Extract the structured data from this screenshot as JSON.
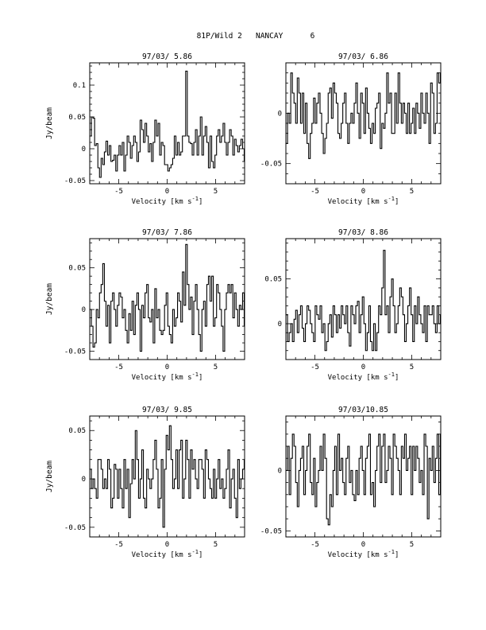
{
  "figure_title": "81P/Wild 2   NANCAY      6",
  "chart_data": [
    {
      "type": "line",
      "title": "97/03/ 5.86",
      "xlabel": "Velocity [km s-1]",
      "ylabel": "Jy/beam",
      "xlim": [
        -8,
        8
      ],
      "ylim": [
        -0.055,
        0.135
      ],
      "xticks": [
        -5,
        0,
        5
      ],
      "yticks": [
        0.1,
        0.05,
        0,
        -0.05
      ],
      "ytick_labels": [
        "0.1",
        "0.05",
        "0",
        "-0.05"
      ],
      "series": [
        {
          "x_start": -8.0,
          "x_step": 0.168,
          "values": [
            0.02,
            0.05,
            0.048,
            0.005,
            0.008,
            -0.03,
            -0.045,
            -0.015,
            -0.025,
            -0.005,
            0.012,
            -0.01,
            0.005,
            -0.02,
            -0.018,
            -0.01,
            -0.035,
            -0.01,
            0.005,
            -0.01,
            0.01,
            -0.035,
            -0.01,
            0.02,
            0.01,
            -0.015,
            0.005,
            0.02,
            0.01,
            -0.02,
            -0.005,
            0.045,
            0.03,
            0.01,
            0.04,
            0.02,
            -0.005,
            0.008,
            -0.02,
            0.01,
            0.045,
            0.02,
            0.04,
            -0.01,
            0.01,
            0.005,
            -0.025,
            -0.025,
            -0.035,
            -0.03,
            -0.025,
            -0.015,
            0.02,
            -0.01,
            0.01,
            -0.01,
            -0.005,
            0.02,
            0.02,
            0.122,
            0.02,
            0.01,
            0.008,
            -0.01,
            0.01,
            0.03,
            -0.01,
            0.02,
            0.05,
            -0.01,
            0.02,
            0.035,
            0.01,
            -0.03,
            0.02,
            -0.02,
            -0.03,
            -0.01,
            0.02,
            0.03,
            0.01,
            0.02,
            0.04,
            0.01,
            -0.01,
            0.01,
            0.03,
            0.02,
            -0.01,
            0.015,
            0.005,
            -0.005,
            0.005,
            0.015,
            0.0,
            -0.02
          ]
        }
      ]
    },
    {
      "type": "line",
      "title": "97/03/ 6.86",
      "xlabel": "Velocity [km s-1]",
      "ylabel": "",
      "xlim": [
        -8,
        8
      ],
      "ylim": [
        -0.07,
        0.05
      ],
      "xticks": [
        -5,
        0,
        5
      ],
      "yticks": [
        0,
        -0.05
      ],
      "ytick_labels": [
        "0",
        "-0.05"
      ],
      "series": [
        {
          "x_start": -8.0,
          "x_step": 0.168,
          "values": [
            -0.03,
            0.0,
            -0.01,
            0.04,
            0.02,
            0.01,
            -0.01,
            0.035,
            0.02,
            -0.01,
            0.02,
            -0.02,
            0.01,
            -0.03,
            -0.045,
            -0.02,
            -0.01,
            0.015,
            -0.01,
            0.01,
            0.02,
            0.0,
            -0.02,
            -0.04,
            -0.025,
            -0.01,
            0.02,
            0.025,
            -0.005,
            0.03,
            0.02,
            0.01,
            -0.02,
            -0.025,
            -0.01,
            0.01,
            0.02,
            -0.01,
            -0.03,
            -0.01,
            0.0,
            -0.01,
            0.01,
            0.03,
            0.0,
            -0.025,
            0.02,
            0.01,
            -0.02,
            0.025,
            0.0,
            -0.015,
            -0.03,
            -0.01,
            -0.02,
            0.005,
            0.01,
            0.02,
            -0.035,
            -0.01,
            -0.015,
            0.0,
            0.04,
            0.01,
            0.02,
            -0.02,
            -0.02,
            0.02,
            -0.01,
            0.04,
            0.01,
            -0.01,
            0.01,
            0.0,
            -0.02,
            0.01,
            -0.02,
            -0.01,
            0.005,
            -0.02,
            0.01,
            0.0,
            -0.015,
            0.02,
            0.0,
            -0.01,
            0.02,
            0.0,
            -0.03,
            0.03,
            0.02,
            -0.02,
            -0.01,
            0.04,
            0.03,
            0.04
          ]
        }
      ]
    },
    {
      "type": "line",
      "title": "97/03/ 7.86",
      "xlabel": "Velocity [km s-1]",
      "ylabel": "Jy/beam",
      "xlim": [
        -8,
        8
      ],
      "ylim": [
        -0.06,
        0.085
      ],
      "xticks": [
        -5,
        0,
        5
      ],
      "yticks": [
        0.05,
        0,
        -0.05
      ],
      "ytick_labels": [
        "0.05",
        "0",
        "-0.05"
      ],
      "series": [
        {
          "x_start": -8.0,
          "x_step": 0.168,
          "values": [
            0.0,
            -0.02,
            -0.045,
            -0.04,
            0.0,
            -0.01,
            0.02,
            0.03,
            0.055,
            0.01,
            -0.02,
            0.005,
            -0.04,
            0.01,
            0.02,
            0.0,
            -0.02,
            0.005,
            0.02,
            0.015,
            -0.01,
            0.0,
            -0.025,
            -0.04,
            -0.005,
            -0.025,
            0.01,
            -0.03,
            0.005,
            0.02,
            0.0,
            -0.05,
            0.005,
            -0.01,
            0.02,
            0.03,
            -0.01,
            -0.015,
            0.0,
            -0.04,
            0.025,
            -0.01,
            0.0,
            -0.025,
            -0.03,
            -0.025,
            0.005,
            0.02,
            -0.02,
            -0.03,
            -0.04,
            0.0,
            -0.02,
            -0.01,
            0.02,
            0.01,
            -0.015,
            0.045,
            0.005,
            0.078,
            0.03,
            0.0,
            0.015,
            -0.03,
            0.01,
            0.03,
            0.0,
            -0.03,
            -0.05,
            0.0,
            0.01,
            -0.02,
            0.03,
            0.04,
            0.01,
            0.04,
            -0.02,
            -0.01,
            0.03,
            0.02,
            0.0,
            -0.02,
            -0.05,
            0.0,
            0.02,
            0.03,
            0.02,
            0.03,
            -0.01,
            0.02,
            0.0,
            -0.02,
            0.005,
            0.0,
            0.02,
            -0.02
          ]
        }
      ]
    },
    {
      "type": "line",
      "title": "97/03/ 8.86",
      "xlabel": "Velocity [km s-1]",
      "ylabel": "",
      "xlim": [
        -8,
        8
      ],
      "ylim": [
        -0.04,
        0.095
      ],
      "xticks": [
        -5,
        0,
        5
      ],
      "yticks": [
        0.05,
        0
      ],
      "ytick_labels": [
        "0.05",
        "0"
      ],
      "series": [
        {
          "x_start": -8.0,
          "x_step": 0.168,
          "values": [
            0.01,
            -0.02,
            -0.01,
            0.0,
            -0.02,
            0.005,
            0.015,
            -0.01,
            0.01,
            0.02,
            -0.005,
            -0.02,
            0.0,
            0.02,
            0.015,
            0.0,
            -0.01,
            -0.02,
            0.02,
            0.01,
            0.005,
            0.02,
            -0.01,
            0.0,
            -0.03,
            -0.02,
            0.0,
            0.01,
            -0.015,
            0.02,
            0.01,
            -0.01,
            0.01,
            -0.005,
            0.02,
            0.01,
            0.0,
            0.02,
            -0.01,
            -0.025,
            0.02,
            0.01,
            0.0,
            0.02,
            0.025,
            -0.01,
            0.01,
            0.03,
            0.0,
            -0.03,
            -0.01,
            0.02,
            -0.02,
            -0.03,
            0.0,
            -0.03,
            -0.01,
            0.02,
            0.01,
            0.04,
            0.082,
            0.01,
            0.02,
            -0.01,
            0.03,
            0.05,
            0.02,
            -0.01,
            0.0,
            0.02,
            0.04,
            0.03,
            0.01,
            -0.02,
            0.0,
            0.02,
            0.04,
            0.01,
            -0.02,
            0.02,
            0.0,
            0.03,
            0.01,
            0.0,
            -0.01,
            0.02,
            -0.02,
            0.02,
            0.01,
            0.01,
            0.02,
            0.0,
            -0.01,
            0.02,
            0.0,
            0.01
          ]
        }
      ]
    },
    {
      "type": "line",
      "title": "97/03/ 9.85",
      "xlabel": "Velocity [km s-1]",
      "ylabel": "Jy/beam",
      "xlim": [
        -8,
        8
      ],
      "ylim": [
        -0.06,
        0.065
      ],
      "xticks": [
        -5,
        0,
        5
      ],
      "yticks": [
        0.05,
        0,
        -0.05
      ],
      "ytick_labels": [
        "0.05",
        "0",
        "-0.05"
      ],
      "series": [
        {
          "x_start": -8.0,
          "x_step": 0.168,
          "values": [
            0.01,
            -0.01,
            0.0,
            -0.01,
            -0.02,
            0.02,
            0.02,
            0.01,
            -0.01,
            0.0,
            -0.01,
            0.02,
            0.01,
            -0.03,
            -0.02,
            0.015,
            0.01,
            -0.02,
            0.01,
            -0.01,
            -0.03,
            0.02,
            -0.01,
            0.01,
            -0.04,
            -0.005,
            0.02,
            0.0,
            0.05,
            0.02,
            -0.02,
            0.0,
            0.03,
            -0.02,
            -0.03,
            0.01,
            0.0,
            -0.01,
            0.0,
            0.02,
            0.04,
            0.01,
            -0.03,
            -0.02,
            0.02,
            -0.05,
            0.01,
            0.045,
            0.03,
            0.055,
            0.02,
            -0.01,
            0.0,
            0.03,
            -0.01,
            0.03,
            0.04,
            -0.02,
            0.0,
            0.04,
            0.02,
            -0.02,
            0.03,
            0.01,
            0.02,
            0.0,
            -0.01,
            0.02,
            0.02,
            0.01,
            -0.02,
            0.03,
            0.02,
            0.0,
            -0.01,
            -0.02,
            0.01,
            -0.02,
            0.0,
            0.02,
            -0.01,
            0.0,
            -0.02,
            -0.01,
            0.01,
            0.03,
            -0.03,
            0.0,
            0.01,
            -0.02,
            -0.04,
            0.02,
            -0.01,
            0.0,
            0.01,
            0.02
          ]
        }
      ]
    },
    {
      "type": "line",
      "title": "97/03/10.85",
      "xlabel": "Velocity [km s-1]",
      "ylabel": "",
      "xlim": [
        -8,
        8
      ],
      "ylim": [
        -0.055,
        0.045
      ],
      "xticks": [
        -5,
        0,
        5
      ],
      "yticks": [
        0,
        -0.05
      ],
      "ytick_labels": [
        "0",
        "-0.05"
      ],
      "series": [
        {
          "x_start": -8.0,
          "x_step": 0.168,
          "values": [
            0.0,
            0.02,
            -0.02,
            0.01,
            0.03,
            0.02,
            -0.01,
            -0.03,
            0.0,
            0.01,
            0.02,
            -0.02,
            0.0,
            0.02,
            0.03,
            -0.01,
            -0.02,
            0.01,
            -0.03,
            -0.01,
            0.0,
            0.02,
            0.0,
            0.03,
            0.01,
            -0.04,
            -0.045,
            -0.02,
            -0.03,
            0.0,
            0.02,
            -0.02,
            0.03,
            0.0,
            0.01,
            -0.01,
            -0.02,
            0.01,
            0.02,
            -0.01,
            0.0,
            -0.02,
            -0.025,
            0.0,
            -0.02,
            0.01,
            0.02,
            0.0,
            -0.02,
            0.01,
            0.02,
            0.03,
            -0.02,
            -0.01,
            -0.03,
            0.0,
            0.02,
            0.03,
            -0.01,
            0.02,
            0.03,
            -0.01,
            0.0,
            0.02,
            0.01,
            -0.02,
            0.03,
            0.02,
            0.01,
            0.0,
            -0.02,
            0.02,
            0.01,
            0.03,
            0.0,
            0.01,
            0.02,
            -0.02,
            0.02,
            0.0,
            0.02,
            0.01,
            -0.01,
            0.0,
            -0.02,
            0.03,
            0.02,
            -0.04,
            0.01,
            0.0,
            0.02,
            -0.01,
            0.01,
            0.03,
            -0.02,
            0.03
          ]
        }
      ]
    }
  ]
}
